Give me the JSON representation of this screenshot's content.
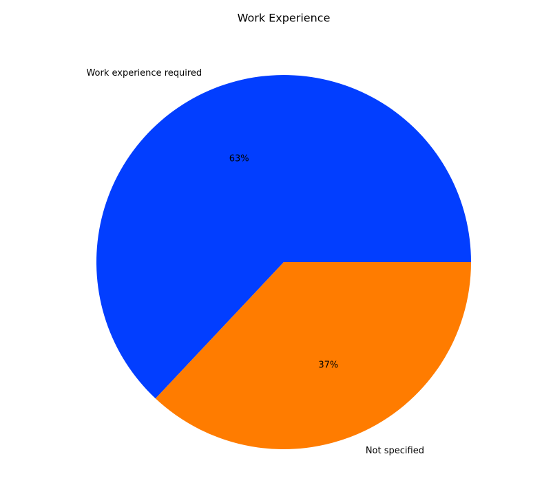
{
  "chart_data": {
    "type": "pie",
    "title": "Work Experience",
    "categories": [
      "Work experience required",
      "Not specified"
    ],
    "values": [
      63,
      37
    ],
    "value_labels": [
      "63%",
      "37%"
    ],
    "colors": [
      "#023eff",
      "#ff7c00"
    ]
  }
}
